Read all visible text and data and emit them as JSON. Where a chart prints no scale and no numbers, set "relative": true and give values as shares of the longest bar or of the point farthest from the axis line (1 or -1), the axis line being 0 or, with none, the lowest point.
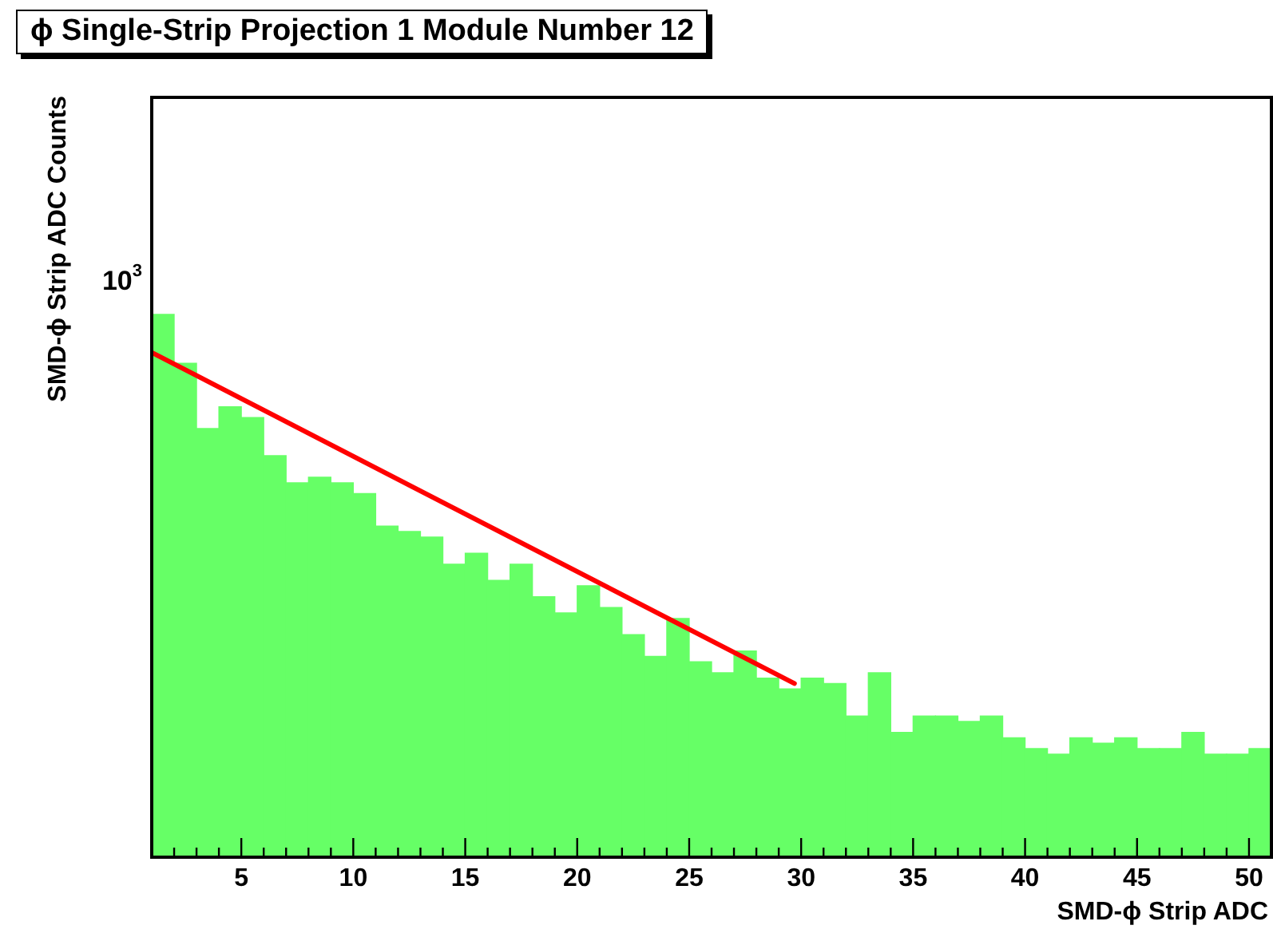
{
  "chart_data": {
    "type": "histogram",
    "title": "ϕ Single-Strip Projection 1 Module Number 12",
    "xlabel": "SMD-ϕ Strip ADC",
    "ylabel": "SMD-ϕ Strip ADC Counts",
    "relative": true,
    "annotations": [
      "10$^{3}$"
    ],
    "bins": [
      1,
      2,
      3,
      4,
      5,
      6,
      7,
      8,
      9,
      10,
      11,
      12,
      13,
      14,
      15,
      16,
      17,
      18,
      19,
      20,
      21,
      22,
      23,
      24,
      25,
      26,
      27,
      28,
      29,
      30,
      31,
      32,
      33,
      34,
      35,
      36,
      37,
      38,
      39,
      40,
      41,
      42,
      43,
      44,
      45,
      46,
      47,
      48,
      49,
      50,
      51
    ],
    "series": [
      {
        "type": "histogram",
        "color": "#66ff66",
        "values": [
          1,
          0.91,
          0.79,
          0.83,
          0.81,
          0.74,
          0.69,
          0.7,
          0.69,
          0.67,
          0.61,
          0.6,
          0.59,
          0.54,
          0.56,
          0.51,
          0.54,
          0.48,
          0.45,
          0.5,
          0.46,
          0.41,
          0.37,
          0.44,
          0.36,
          0.34,
          0.38,
          0.33,
          0.31,
          0.33,
          0.32,
          0.26,
          0.34,
          0.23,
          0.26,
          0.26,
          0.25,
          0.26,
          0.22,
          0.2,
          0.19,
          0.22,
          0.21,
          0.22,
          0.2,
          0.2,
          0.23,
          0.19,
          0.19,
          0.2
        ]
      },
      {
        "type": "line",
        "color": "#ff0000",
        "x": [
          1,
          29.7
        ],
        "values": [
          0.93,
          0.32
        ]
      }
    ],
    "grid": false,
    "xlim": [
      1,
      51
    ],
    "xticks": [
      {
        "value": 2,
        "label": null
      },
      {
        "value": 3,
        "label": null
      },
      {
        "value": 4,
        "label": null
      },
      5,
      {
        "value": 6,
        "label": null
      },
      {
        "value": 7,
        "label": null
      },
      {
        "value": 8,
        "label": null
      },
      {
        "value": 9,
        "label": null
      },
      10,
      {
        "value": 11,
        "label": null
      },
      {
        "value": 12,
        "label": null
      },
      {
        "value": 13,
        "label": null
      },
      {
        "value": 14,
        "label": null
      },
      15,
      {
        "value": 16,
        "label": null
      },
      {
        "value": 17,
        "label": null
      },
      {
        "value": 18,
        "label": null
      },
      {
        "value": 19,
        "label": null
      },
      20,
      {
        "value": 21,
        "label": null
      },
      {
        "value": 22,
        "label": null
      },
      {
        "value": 23,
        "label": null
      },
      {
        "value": 24,
        "label": null
      },
      25,
      {
        "value": 26,
        "label": null
      },
      {
        "value": 27,
        "label": null
      },
      {
        "value": 28,
        "label": null
      },
      {
        "value": 29,
        "label": null
      },
      30,
      {
        "value": 31,
        "label": null
      },
      {
        "value": 32,
        "label": null
      },
      {
        "value": 33,
        "label": null
      },
      {
        "value": 34,
        "label": null
      },
      35,
      {
        "value": 36,
        "label": null
      },
      {
        "value": 37,
        "label": null
      },
      {
        "value": 38,
        "label": null
      },
      {
        "value": 39,
        "label": null
      },
      40,
      {
        "value": 41,
        "label": null
      },
      {
        "value": 42,
        "label": null
      },
      {
        "value": 43,
        "label": null
      },
      {
        "value": 44,
        "label": null
      },
      45,
      {
        "value": 46,
        "label": null
      },
      {
        "value": 47,
        "label": null
      },
      {
        "value": 48,
        "label": null
      },
      {
        "value": 49,
        "label": null
      },
      50
    ]
  }
}
